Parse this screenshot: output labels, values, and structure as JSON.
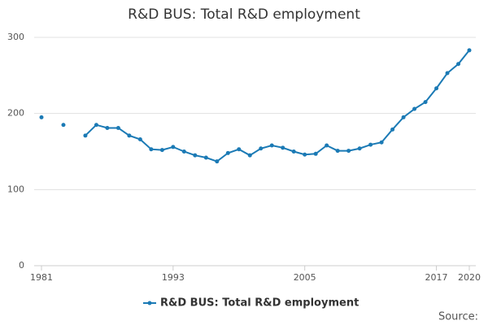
{
  "chart_data": {
    "type": "line",
    "title": "R&D BUS: Total R&D employment",
    "x": [
      1981,
      1982,
      1983,
      1984,
      1985,
      1986,
      1987,
      1988,
      1989,
      1990,
      1991,
      1992,
      1993,
      1994,
      1995,
      1996,
      1997,
      1998,
      1999,
      2000,
      2001,
      2002,
      2003,
      2004,
      2005,
      2006,
      2007,
      2008,
      2009,
      2010,
      2011,
      2012,
      2013,
      2014,
      2015,
      2016,
      2017,
      2018,
      2019,
      2020
    ],
    "series": [
      {
        "name": "R&D BUS: Total R&D employment",
        "color": "#1b7ab5",
        "values": [
          195,
          null,
          185,
          null,
          171,
          185,
          181,
          181,
          171,
          166,
          153,
          152,
          156,
          150,
          145,
          142,
          137,
          148,
          153,
          145,
          154,
          158,
          155,
          150,
          146,
          147,
          158,
          151,
          151,
          154,
          159,
          162,
          179,
          195,
          206,
          215,
          233,
          253,
          265,
          283
        ]
      }
    ],
    "xlim": [
      1981,
      2020
    ],
    "xticks": [
      1981,
      1993,
      2005,
      2017,
      2020
    ],
    "ylim": [
      0,
      300
    ],
    "yticks": [
      0,
      100,
      200,
      300
    ],
    "grid": true,
    "legend": "bottom",
    "source_label": "Source:"
  }
}
